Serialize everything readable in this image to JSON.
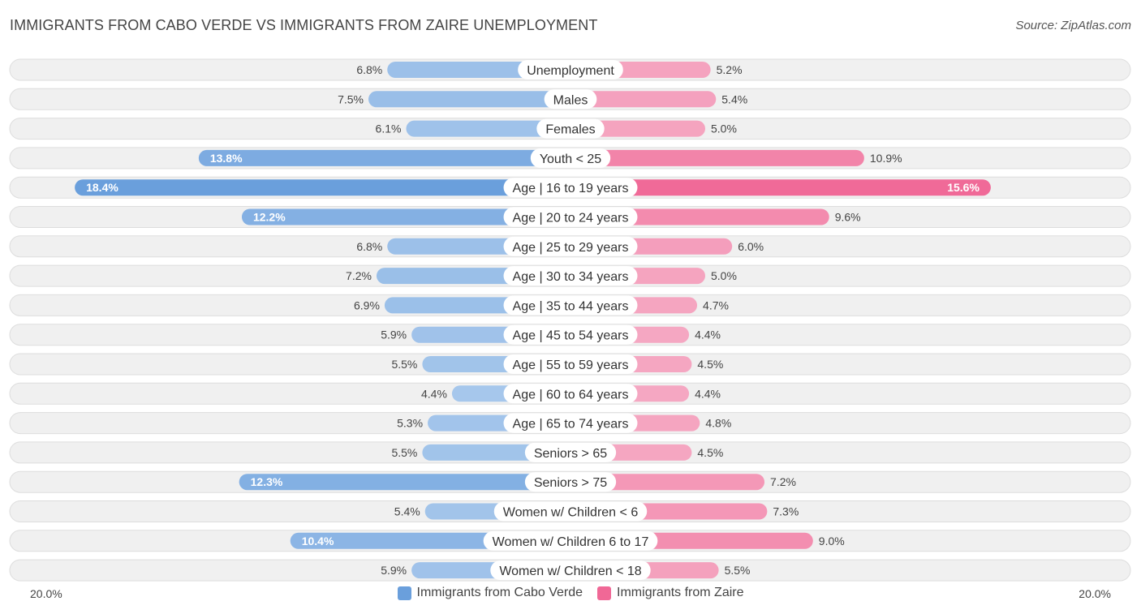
{
  "title": "IMMIGRANTS FROM CABO VERDE VS IMMIGRANTS FROM ZAIRE UNEMPLOYMENT",
  "source": "Source: ZipAtlas.com",
  "colors": {
    "left_strong": "#6a9fdc",
    "left_light": "#a8c8ec",
    "right_strong": "#f06896",
    "right_light": "#f5a9c3",
    "row_bg": "#f0f0f0",
    "row_border": "#dddddd"
  },
  "chart_data": {
    "type": "bar",
    "orientation": "horizontal-diverging",
    "title": "IMMIGRANTS FROM CABO VERDE VS IMMIGRANTS FROM ZAIRE UNEMPLOYMENT",
    "categories": [
      "Unemployment",
      "Males",
      "Females",
      "Youth < 25",
      "Age | 16 to 19 years",
      "Age | 20 to 24 years",
      "Age | 25 to 29 years",
      "Age | 30 to 34 years",
      "Age | 35 to 44 years",
      "Age | 45 to 54 years",
      "Age | 55 to 59 years",
      "Age | 60 to 64 years",
      "Age | 65 to 74 years",
      "Seniors > 65",
      "Seniors > 75",
      "Women w/ Children < 6",
      "Women w/ Children 6 to 17",
      "Women w/ Children < 18"
    ],
    "series": [
      {
        "name": "Immigrants from Cabo Verde",
        "side": "left",
        "values": [
          6.8,
          7.5,
          6.1,
          13.8,
          18.4,
          12.2,
          6.8,
          7.2,
          6.9,
          5.9,
          5.5,
          4.4,
          5.3,
          5.5,
          12.3,
          5.4,
          10.4,
          5.9
        ],
        "labels": [
          "6.8%",
          "7.5%",
          "6.1%",
          "13.8%",
          "18.4%",
          "12.2%",
          "6.8%",
          "7.2%",
          "6.9%",
          "5.9%",
          "5.5%",
          "4.4%",
          "5.3%",
          "5.5%",
          "12.3%",
          "5.4%",
          "10.4%",
          "5.9%"
        ]
      },
      {
        "name": "Immigrants from Zaire",
        "side": "right",
        "values": [
          5.2,
          5.4,
          5.0,
          10.9,
          15.6,
          9.6,
          6.0,
          5.0,
          4.7,
          4.4,
          4.5,
          4.4,
          4.8,
          4.5,
          7.2,
          7.3,
          9.0,
          5.5
        ],
        "labels": [
          "5.2%",
          "5.4%",
          "5.0%",
          "10.9%",
          "15.6%",
          "9.6%",
          "6.0%",
          "5.0%",
          "4.7%",
          "4.4%",
          "4.5%",
          "4.4%",
          "4.8%",
          "4.5%",
          "7.2%",
          "7.3%",
          "9.0%",
          "5.5%"
        ]
      }
    ],
    "xlim": [
      0,
      20
    ],
    "axis_labels": {
      "left": "20.0%",
      "right": "20.0%"
    },
    "legend_position": "bottom-center"
  },
  "legend": {
    "left": "Immigrants from Cabo Verde",
    "right": "Immigrants from Zaire"
  }
}
